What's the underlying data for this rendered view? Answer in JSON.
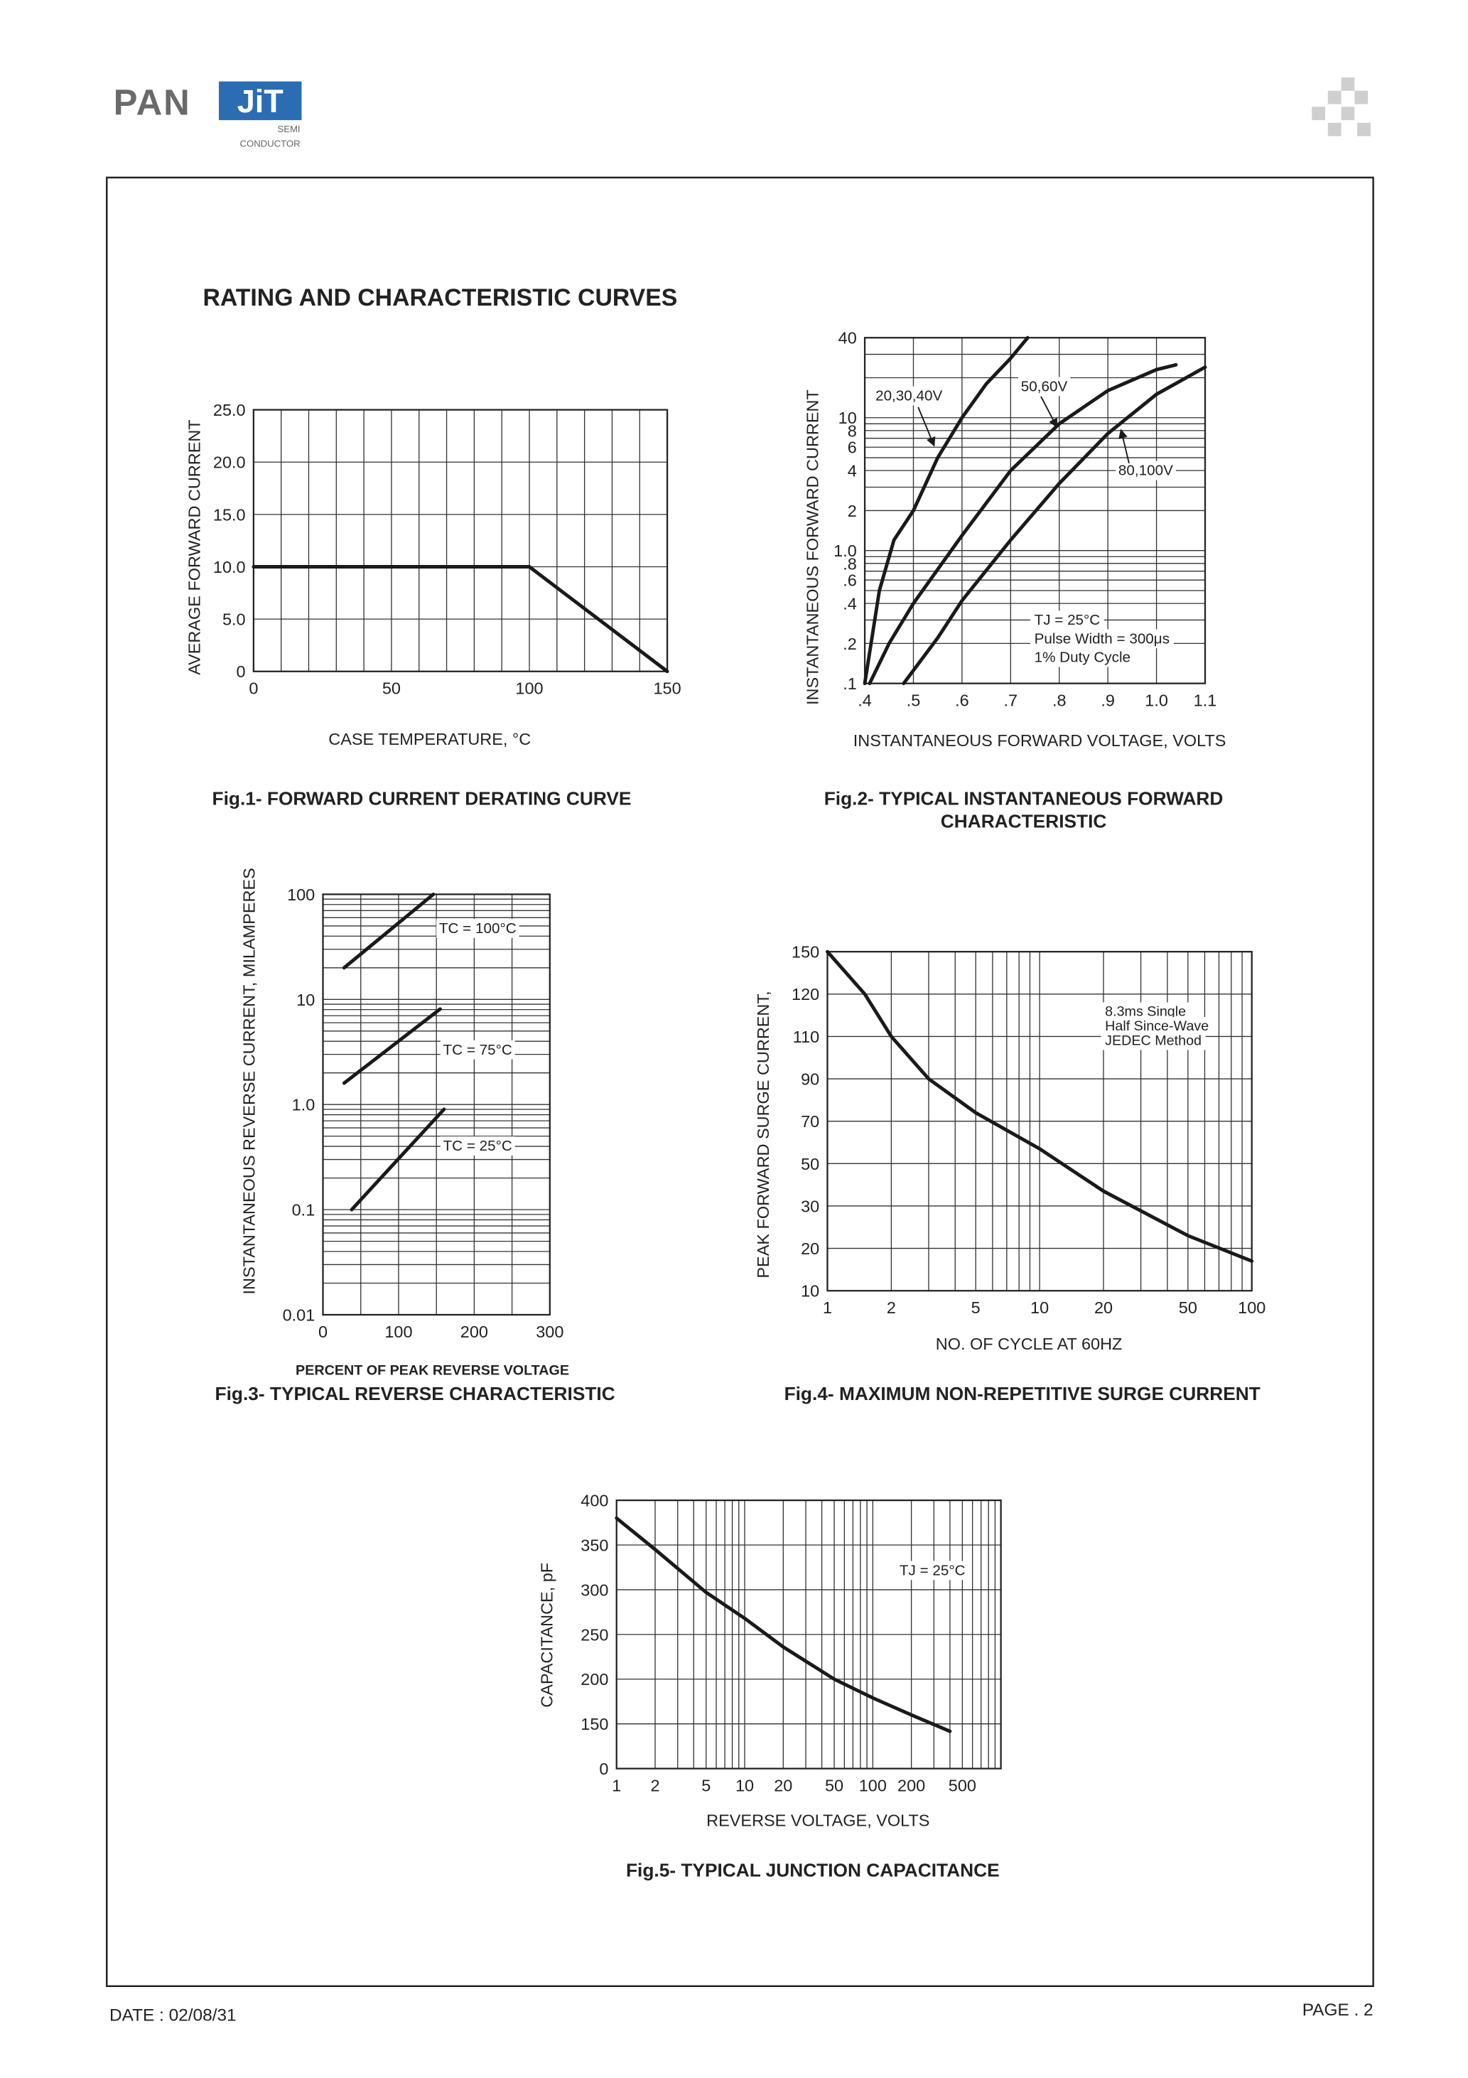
{
  "header": {
    "logo": "PAN",
    "logo_badge": "JiT",
    "logo_sub": [
      "SEMI",
      "CONDUCTOR"
    ]
  },
  "heading": "RATING AND CHARACTERISTIC CURVES",
  "chart_data": [
    {
      "type": "line",
      "title": [
        "Fig.1- FORWARD CURRENT DERATING CURVE"
      ],
      "xlabel": "CASE TEMPERATURE, °C",
      "ylabel": "AVERAGE FORWARD CURRENT",
      "xscale": "linear",
      "yscale": "linear",
      "grid": true,
      "xlim": [
        0,
        150
      ],
      "ylim": [
        0,
        25
      ],
      "xticks": [
        0,
        50,
        100,
        150
      ],
      "yticks": [
        0,
        {
          "value": 5,
          "label": "5.0"
        },
        {
          "value": 10,
          "label": "10.0"
        },
        {
          "value": 15,
          "label": "15.0"
        },
        {
          "value": 20,
          "label": "20.0"
        },
        {
          "value": 25,
          "label": "25.0"
        }
      ],
      "xgrid": [
        10,
        20,
        30,
        40,
        60,
        70,
        80,
        90,
        110,
        120,
        130,
        140
      ],
      "series": [
        {
          "color": "#1a1a1a",
          "x": [
            0,
            100,
            150
          ],
          "values": [
            10,
            10,
            0
          ]
        }
      ]
    },
    {
      "type": "line",
      "title": [
        "Fig.2- TYPICAL INSTANTANEOUS FORWARD",
        "CHARACTERISTIC"
      ],
      "xlabel": "INSTANTANEOUS FORWARD VOLTAGE, VOLTS",
      "ylabel": "INSTANTANEOUS FORWARD CURRENT",
      "xscale": "linear",
      "yscale": "log",
      "grid": true,
      "xlim": [
        0.4,
        1.1
      ],
      "ylim": [
        0.1,
        40
      ],
      "xticks": [
        {
          "value": 0.4,
          "label": ".4"
        },
        {
          "value": 0.5,
          "label": ".5"
        },
        {
          "value": 0.6,
          "label": ".6"
        },
        {
          "value": 0.7,
          "label": ".7"
        },
        {
          "value": 0.8,
          "label": ".8"
        },
        {
          "value": 0.9,
          "label": ".9"
        },
        {
          "value": 1.0,
          "label": "1.0"
        },
        1.1
      ],
      "yticks": [
        {
          "value": 0.1,
          "label": ".1"
        },
        {
          "value": 0.2,
          "label": ".2"
        },
        {
          "value": 0.4,
          "label": ".4"
        },
        {
          "value": 0.6,
          "label": ".6"
        },
        {
          "value": 0.8,
          "label": ".8"
        },
        {
          "value": 1,
          "label": "1.0"
        },
        2,
        4,
        6,
        8,
        10,
        40
      ],
      "ygrid": [
        0.3,
        0.5,
        0.7,
        0.9,
        3,
        5,
        7,
        9,
        20,
        30
      ],
      "series": [
        {
          "name": "20,30,40V",
          "color": "#1a1a1a",
          "x": [
            0.4,
            0.43,
            0.46,
            0.5,
            0.55,
            0.6,
            0.65,
            0.7,
            0.735
          ],
          "values": [
            0.1,
            0.5,
            1.2,
            2,
            5,
            10,
            18,
            28,
            40
          ]
        },
        {
          "name": "50,60V",
          "color": "#1a1a1a",
          "x": [
            0.41,
            0.45,
            0.5,
            0.6,
            0.7,
            0.8,
            0.9,
            1.0,
            1.04
          ],
          "values": [
            0.1,
            0.2,
            0.4,
            1.3,
            4,
            9,
            16,
            23,
            25
          ]
        },
        {
          "name": "80,100V",
          "color": "#1a1a1a",
          "x": [
            0.48,
            0.55,
            0.6,
            0.7,
            0.8,
            0.9,
            1.0,
            1.1
          ],
          "values": [
            0.1,
            0.22,
            0.42,
            1.2,
            3.2,
            7.6,
            15,
            24
          ]
        }
      ],
      "notes": [
        "TJ = 25°C",
        "Pulse Width = 300μs",
        "1% Duty Cycle"
      ]
    },
    {
      "type": "line",
      "title": [
        "Fig.3- TYPICAL REVERSE CHARACTERISTIC"
      ],
      "xlabel": "PERCENT OF PEAK REVERSE VOLTAGE",
      "ylabel": "INSTANTANEOUS REVERSE CURRENT, MILAMPERES",
      "xscale": "linear",
      "yscale": "log",
      "grid": true,
      "xlim": [
        0,
        300
      ],
      "ylim": [
        0.01,
        100
      ],
      "xticks": [
        0,
        100,
        200,
        300
      ],
      "yticks": [
        0.01,
        0.1,
        {
          "value": 1,
          "label": "1.0"
        },
        10,
        100
      ],
      "xgrid": [
        50,
        150,
        250
      ],
      "ygrid": [
        0.02,
        0.03,
        0.04,
        0.05,
        0.06,
        0.07,
        0.08,
        0.09,
        0.2,
        0.3,
        0.4,
        0.5,
        0.6,
        0.7,
        0.8,
        0.9,
        2,
        3,
        4,
        5,
        6,
        7,
        8,
        9,
        20,
        30,
        40,
        50,
        60,
        70,
        80,
        90
      ],
      "series": [
        {
          "name": "TC = 100°C",
          "color": "#1a1a1a",
          "x": [
            28,
            146
          ],
          "values": [
            20,
            100
          ]
        },
        {
          "name": "TC = 75°C",
          "color": "#1a1a1a",
          "x": [
            28,
            155
          ],
          "values": [
            1.6,
            8.1
          ]
        },
        {
          "name": "TC = 25°C",
          "color": "#1a1a1a",
          "x": [
            38,
            160
          ],
          "values": [
            0.1,
            0.9
          ]
        }
      ]
    },
    {
      "type": "line",
      "title": [
        "Fig.4- MAXIMUM NON-REPETITIVE SURGE CURRENT"
      ],
      "xlabel": "NO. OF CYCLE AT 60HZ",
      "ylabel": "PEAK FORWARD SURGE CURRENT,",
      "xscale": "log",
      "yscale": "tick-spaced",
      "grid": true,
      "xlim": [
        1,
        100
      ],
      "ylim": [
        10,
        150
      ],
      "xticks": [
        1,
        2,
        5,
        10,
        20,
        50,
        100
      ],
      "yticks": [
        10,
        20,
        30,
        50,
        70,
        90,
        110,
        120,
        150
      ],
      "xgrid": [
        3,
        4,
        6,
        7,
        8,
        9,
        30,
        40,
        60,
        70,
        80,
        90
      ],
      "series": [
        {
          "color": "#1a1a1a",
          "x": [
            1,
            1.5,
            2,
            3,
            5,
            10,
            20,
            50,
            100
          ],
          "values": [
            150,
            120,
            110,
            90,
            74,
            57,
            37,
            23,
            17
          ]
        }
      ],
      "notes": [
        "8.3ms Single",
        "Half Since-Wave",
        "JEDEC Method"
      ]
    },
    {
      "type": "line",
      "title": [
        "Fig.5- TYPICAL JUNCTION CAPACITANCE"
      ],
      "xlabel": "REVERSE VOLTAGE, VOLTS",
      "ylabel": "CAPACITANCE, pF",
      "xscale": "log",
      "yscale": "tick-spaced",
      "grid": true,
      "xlim": [
        1,
        1000
      ],
      "ylim": [
        0,
        400
      ],
      "xticks": [
        1,
        2,
        5,
        10,
        20,
        50,
        100,
        200,
        500
      ],
      "yticks": [
        0,
        150,
        200,
        250,
        300,
        350,
        400
      ],
      "xgrid": [
        3,
        4,
        6,
        7,
        8,
        9,
        30,
        40,
        60,
        70,
        80,
        90,
        300,
        400,
        600,
        700,
        800,
        900
      ],
      "series": [
        {
          "color": "#1a1a1a",
          "x": [
            1,
            2,
            5,
            10,
            20,
            50,
            100,
            200,
            400
          ],
          "values": [
            380,
            345,
            297,
            268,
            236,
            200,
            179,
            160,
            125
          ]
        }
      ],
      "notes": [
        "TJ = 25°C"
      ]
    }
  ],
  "footer": {
    "date": "DATE : 02/08/31",
    "page": "PAGE . 2"
  }
}
